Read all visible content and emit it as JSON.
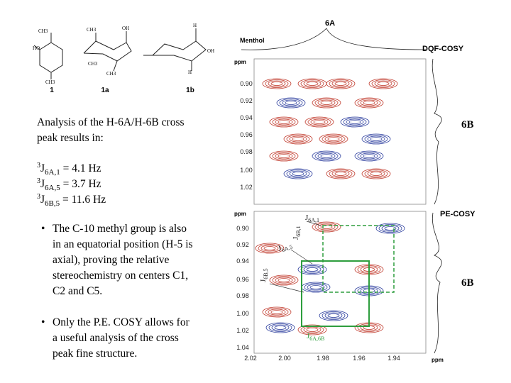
{
  "structures": {
    "labels": [
      "1",
      "1a",
      "1b"
    ],
    "atom_labels": [
      "CH3",
      "HO",
      "CH3",
      "CH3",
      "OH",
      "CH3",
      "CH3",
      "H",
      "OH",
      "H"
    ]
  },
  "spectra": [
    {
      "title": "DQF-COSY",
      "compound": "Menthol",
      "top_label": "6A",
      "side_label": "6B",
      "y_unit": "ppm",
      "yticks": [
        "0.90",
        "0.92",
        "0.94",
        "0.96",
        "0.98",
        "1.00",
        "1.02"
      ]
    },
    {
      "title": "PE-COSY",
      "side_label": "6B",
      "y_unit": "ppm",
      "yticks": [
        "0.90",
        "0.92",
        "0.94",
        "0.96",
        "0.98",
        "1.00",
        "1.02",
        "1.04"
      ],
      "xticks": [
        "2.02",
        "2.00",
        "1.98",
        "1.96",
        "1.94"
      ],
      "x_unit": "ppm",
      "annotations": [
        {
          "symbol": "J",
          "sub": "6A,1"
        },
        {
          "symbol": "J",
          "sub": "6B,1"
        },
        {
          "symbol": "J",
          "sub": "6A,5"
        },
        {
          "symbol": "J",
          "sub": "6B,5"
        },
        {
          "symbol": "J",
          "sub": "6A,6B"
        }
      ]
    }
  ],
  "text": {
    "intro": [
      "Analysis of the H-6A/H-6B cross",
      "peak results in:"
    ],
    "couplings": [
      {
        "sup": "3",
        "symbol": "J",
        "sub": "6A,1",
        "rest": " = 4.1 Hz"
      },
      {
        "sup": "3",
        "symbol": "J",
        "sub": "6A,5",
        "rest": " = 3.7 Hz"
      },
      {
        "sup": "3",
        "symbol": "J",
        "sub": "6B,5",
        "rest": " = 11.6 Hz"
      }
    ],
    "bullet_marker": "•",
    "bullets": [
      [
        "The C-10 methyl group is also",
        "in an equatorial position (H-5 is",
        "axial), proving the relative",
        "stereochemistry on centers C1,",
        "C2 and C5."
      ],
      [
        "Only the P.E. COSY allows for",
        "a useful analysis of the cross",
        "peak fine structure."
      ]
    ]
  }
}
